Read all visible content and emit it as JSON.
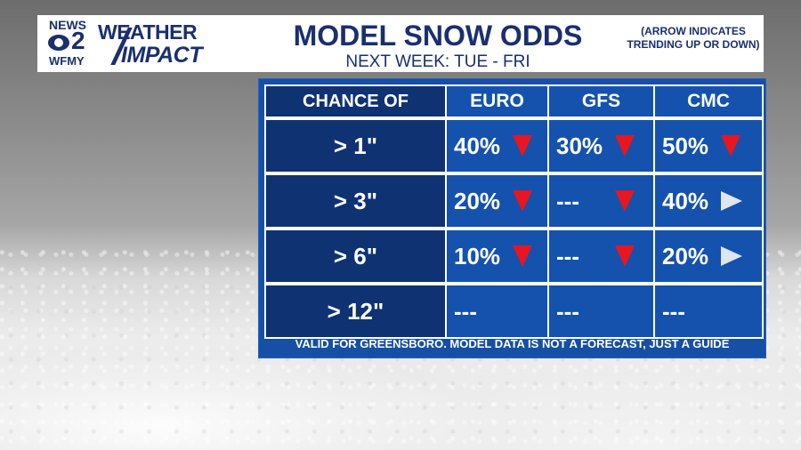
{
  "branding": {
    "news": "NEWS",
    "channel": "2",
    "station": "WFMY",
    "weather": "WEATHER",
    "impact": "IMPACT"
  },
  "header": {
    "title": "MODEL SNOW ODDS",
    "subtitle": "NEXT WEEK: TUE - FRI",
    "note": "(ARROW INDICATES TRENDING UP OR DOWN)"
  },
  "table": {
    "columns": [
      "CHANCE OF",
      "EURO",
      "GFS",
      "CMC"
    ],
    "rows": [
      {
        "label": "> 1\"",
        "cells": [
          {
            "value": "40%",
            "trend": "down"
          },
          {
            "value": "30%",
            "trend": "down"
          },
          {
            "value": "50%",
            "trend": "down"
          }
        ]
      },
      {
        "label": "> 3\"",
        "cells": [
          {
            "value": "20%",
            "trend": "down"
          },
          {
            "value": "---",
            "trend": "down"
          },
          {
            "value": "40%",
            "trend": "right"
          }
        ]
      },
      {
        "label": "> 6\"",
        "cells": [
          {
            "value": "10%",
            "trend": "down"
          },
          {
            "value": "---",
            "trend": "down"
          },
          {
            "value": "20%",
            "trend": "right"
          }
        ]
      },
      {
        "label": "> 12\"",
        "cells": [
          {
            "value": "---",
            "trend": "none"
          },
          {
            "value": "---",
            "trend": "none"
          },
          {
            "value": "---",
            "trend": "none"
          }
        ]
      }
    ],
    "footer": "VALID FOR GREENSBORO. MODEL DATA IS NOT A FORECAST, JUST A GUIDE"
  },
  "colors": {
    "navy": "#1a2f6e",
    "cell_blue": "#1452ae",
    "label_blue": "#0f3273",
    "down_arrow": "#e8161f",
    "flat_arrow": "#dfe6f2"
  }
}
